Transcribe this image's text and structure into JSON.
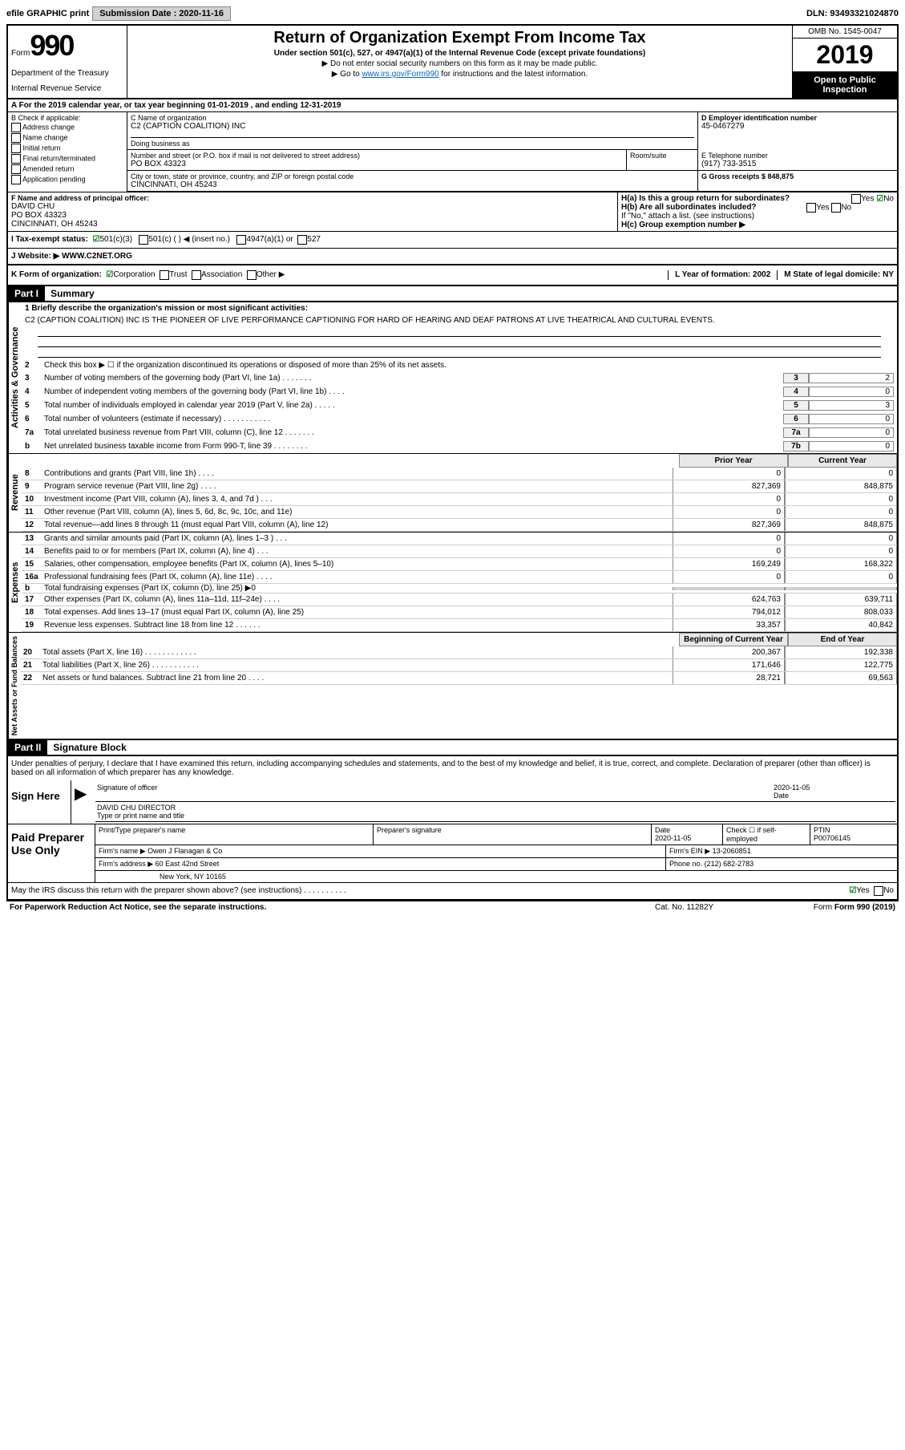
{
  "topbar": {
    "efile": "efile GRAPHIC print",
    "submission_label": "Submission Date : 2020-11-16",
    "dln": "DLN: 93493321024870"
  },
  "header": {
    "form_word": "Form",
    "form_num": "990",
    "dept": "Department of the Treasury",
    "irs": "Internal Revenue Service",
    "title": "Return of Organization Exempt From Income Tax",
    "sub": "Under section 501(c), 527, or 4947(a)(1) of the Internal Revenue Code (except private foundations)",
    "note1": "▶ Do not enter social security numbers on this form as it may be made public.",
    "note2_pre": "▶ Go to ",
    "note2_link": "www.irs.gov/Form990",
    "note2_post": " for instructions and the latest information.",
    "omb": "OMB No. 1545-0047",
    "year": "2019",
    "open": "Open to Public Inspection"
  },
  "line_a": "A For the 2019 calendar year, or tax year beginning 01-01-2019    , and ending 12-31-2019",
  "section_b": {
    "label": "B Check if applicable:",
    "addr": "Address change",
    "name": "Name change",
    "initial": "Initial return",
    "final": "Final return/terminated",
    "amended": "Amended return",
    "app": "Application pending"
  },
  "section_c": {
    "name_label": "C Name of organization",
    "name": "C2 (CAPTION COALITION) INC",
    "dba_label": "Doing business as",
    "dba": "",
    "addr_label": "Number and street (or P.O. box if mail is not delivered to street address)",
    "addr": "PO BOX 43323",
    "room_label": "Room/suite",
    "city_label": "City or town, state or province, country, and ZIP or foreign postal code",
    "city": "CINCINNATI, OH  45243"
  },
  "section_d": {
    "label": "D Employer identification number",
    "ein": "45-0467279"
  },
  "section_e": {
    "label": "E Telephone number",
    "phone": "(917) 733-3515"
  },
  "section_g": {
    "label": "G Gross receipts $ 848,875"
  },
  "section_f": {
    "label": "F  Name and address of principal officer:",
    "name": "DAVID CHU",
    "addr1": "PO BOX 43323",
    "addr2": "CINCINNATI, OH  45243"
  },
  "section_h": {
    "ha": "H(a)  Is this a group return for subordinates?",
    "hb": "H(b)  Are all subordinates included?",
    "hb_note": "If \"No,\" attach a list. (see instructions)",
    "hc": "H(c)  Group exemption number ▶",
    "yes": "Yes",
    "no": "No"
  },
  "tax_status": {
    "label": "I    Tax-exempt status:",
    "c3": "501(c)(3)",
    "c": "501(c) (  ) ◀ (insert no.)",
    "a1": "4947(a)(1) or",
    "s527": "527"
  },
  "website": {
    "label": "J   Website: ▶",
    "url": "WWW.C2NET.ORG"
  },
  "k": {
    "label": "K Form of organization:",
    "corp": "Corporation",
    "trust": "Trust",
    "assoc": "Association",
    "other": "Other ▶",
    "l_label": "L Year of formation: 2002",
    "m_label": "M State of legal domicile: NY"
  },
  "part1": {
    "header": "Part I",
    "title": "Summary",
    "q1_label": "1  Briefly describe the organization's mission or most significant activities:",
    "q1_text": "C2 (CAPTION COALITION) INC IS THE PIONEER OF LIVE PERFORMANCE CAPTIONING FOR HARD OF HEARING AND DEAF PATRONS AT LIVE THEATRICAL AND CULTURAL EVENTS.",
    "q2": "Check this box ▶ ☐ if the organization discontinued its operations or disposed of more than 25% of its net assets.",
    "governance_label": "Activities & Governance",
    "rows_gov": [
      {
        "n": "3",
        "t": "Number of voting members of the governing body (Part VI, line 1a)  .    .    .    .    .    .    .",
        "box": "3",
        "v": "2"
      },
      {
        "n": "4",
        "t": "Number of independent voting members of the governing body (Part VI, line 1b)  .    .    .    .",
        "box": "4",
        "v": "0"
      },
      {
        "n": "5",
        "t": "Total number of individuals employed in calendar year 2019 (Part V, line 2a)  .    .    .    .    .",
        "box": "5",
        "v": "3"
      },
      {
        "n": "6",
        "t": "Total number of volunteers (estimate if necessary)   .    .    .    .    .    .    .    .    .    .    .",
        "box": "6",
        "v": "0"
      },
      {
        "n": "7a",
        "t": "Total unrelated business revenue from Part VIII, column (C), line 12  .    .    .    .    .    .    .",
        "box": "7a",
        "v": "0"
      },
      {
        "n": " b",
        "t": "Net unrelated business taxable income from Form 990-T, line 39   .    .    .    .    .    .    .    .",
        "box": "7b",
        "v": "0"
      }
    ],
    "prior_label": "Prior Year",
    "current_label": "Current Year",
    "revenue_label": "Revenue",
    "rows_rev": [
      {
        "n": "8",
        "t": "Contributions and grants (Part VIII, line 1h)  .    .    .    .",
        "p": "0",
        "c": "0"
      },
      {
        "n": "9",
        "t": "Program service revenue (Part VIII, line 2g)  .    .    .    .",
        "p": "827,369",
        "c": "848,875"
      },
      {
        "n": "10",
        "t": "Investment income (Part VIII, column (A), lines 3, 4, and 7d )   .    .    .",
        "p": "0",
        "c": "0"
      },
      {
        "n": "11",
        "t": "Other revenue (Part VIII, column (A), lines 5, 6d, 8c, 9c, 10c, and 11e)",
        "p": "0",
        "c": "0"
      },
      {
        "n": "12",
        "t": "Total revenue—add lines 8 through 11 (must equal Part VIII, column (A), line 12)",
        "p": "827,369",
        "c": "848,875"
      }
    ],
    "expenses_label": "Expenses",
    "rows_exp": [
      {
        "n": "13",
        "t": "Grants and similar amounts paid (Part IX, column (A), lines 1–3 )  .    .    .",
        "p": "0",
        "c": "0"
      },
      {
        "n": "14",
        "t": "Benefits paid to or for members (Part IX, column (A), line 4)   .    .    .",
        "p": "0",
        "c": "0"
      },
      {
        "n": "15",
        "t": "Salaries, other compensation, employee benefits (Part IX, column (A), lines 5–10)",
        "p": "169,249",
        "c": "168,322"
      },
      {
        "n": "16a",
        "t": "Professional fundraising fees (Part IX, column (A), line 11e)  .    .    .    .",
        "p": "0",
        "c": "0"
      },
      {
        "n": "b",
        "t": "Total fundraising expenses (Part IX, column (D), line 25) ▶0",
        "p": "",
        "c": "",
        "gray": true
      },
      {
        "n": "17",
        "t": "Other expenses (Part IX, column (A), lines 11a–11d, 11f–24e)  .    .    .    .",
        "p": "624,763",
        "c": "639,711"
      },
      {
        "n": "18",
        "t": "Total expenses. Add lines 13–17 (must equal Part IX, column (A), line 25)",
        "p": "794,012",
        "c": "808,033"
      },
      {
        "n": "19",
        "t": "Revenue less expenses. Subtract line 18 from line 12  .    .    .    .    .    .",
        "p": "33,357",
        "c": "40,842"
      }
    ],
    "netassets_label": "Net Assets or Fund Balances",
    "begin_label": "Beginning of Current Year",
    "end_label": "End of Year",
    "rows_net": [
      {
        "n": "20",
        "t": "Total assets (Part X, line 16)  .    .    .    .    .    .    .    .    .    .    .    .",
        "p": "200,367",
        "c": "192,338"
      },
      {
        "n": "21",
        "t": "Total liabilities (Part X, line 26)  .    .    .    .    .    .    .    .    .    .    .",
        "p": "171,646",
        "c": "122,775"
      },
      {
        "n": "22",
        "t": "Net assets or fund balances. Subtract line 21 from line 20  .    .    .    .",
        "p": "28,721",
        "c": "69,563"
      }
    ]
  },
  "part2": {
    "header": "Part II",
    "title": "Signature Block",
    "penalty": "Under penalties of perjury, I declare that I have examined this return, including accompanying schedules and statements, and to the best of my knowledge and belief, it is true, correct, and complete. Declaration of preparer (other than officer) is based on all information of which preparer has any knowledge.",
    "sign_here": "Sign Here",
    "sig_officer": "Signature of officer",
    "date": "2020-11-05",
    "date_label": "Date",
    "officer_name": "DAVID CHU  DIRECTOR",
    "name_title_label": "Type or print name and title",
    "paid_label": "Paid Preparer Use Only",
    "prep_name_label": "Print/Type preparer's name",
    "prep_sig_label": "Preparer's signature",
    "prep_date": "2020-11-05",
    "check_self": "Check ☐ if self-employed",
    "ptin_label": "PTIN",
    "ptin": "P00706145",
    "firm_name_label": "Firm's name    ▶",
    "firm_name": "Owen J Flanagan & Co",
    "firm_ein_label": "Firm's EIN ▶",
    "firm_ein": "13-2060851",
    "firm_addr_label": "Firm's address ▶",
    "firm_addr1": "60 East 42nd Street",
    "firm_addr2": "New York, NY  10165",
    "phone_label": "Phone no.",
    "phone": "(212) 682-2783",
    "discuss": "May the IRS discuss this return with the preparer shown above? (see instructions)   .    .    .    .    .    .    .    .    .    .",
    "yes": "Yes",
    "no": "No"
  },
  "footer": {
    "left": "For Paperwork Reduction Act Notice, see the separate instructions.",
    "mid": "Cat. No. 11282Y",
    "right": "Form 990 (2019)"
  }
}
